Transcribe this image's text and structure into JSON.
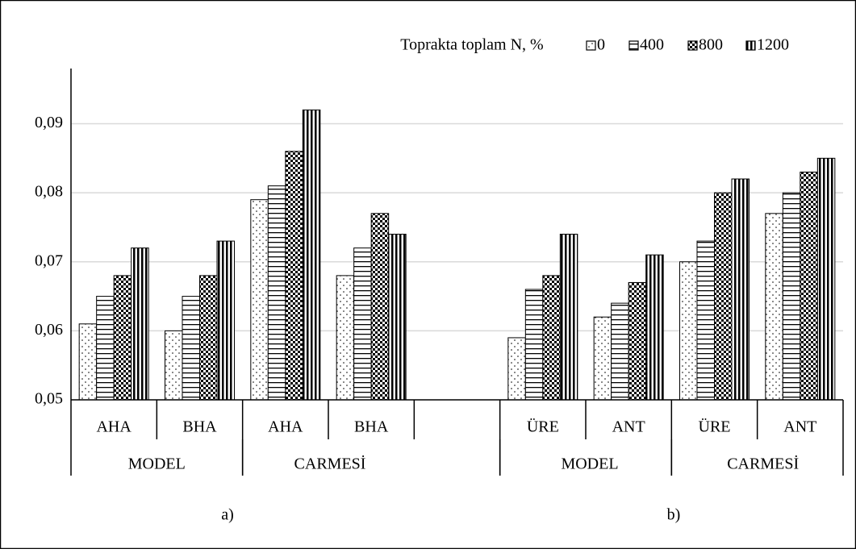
{
  "chart_data": {
    "type": "bar",
    "legend_title": "Toprakta toplam N, %",
    "categories": [
      "AHA",
      "BHA",
      "AHA",
      "BHA",
      null,
      "ÜRE",
      "ANT",
      "ÜRE",
      "ANT"
    ],
    "groups": [
      "MODEL",
      "CARMESİ",
      "MODEL",
      "CARMESİ"
    ],
    "panels": [
      "a)",
      "b)"
    ],
    "series": [
      {
        "name": "0",
        "color": "#000000",
        "pattern": "dots",
        "values": [
          0.061,
          0.06,
          0.079,
          0.068,
          null,
          0.059,
          0.062,
          0.07,
          0.077
        ]
      },
      {
        "name": "400",
        "color": "#000000",
        "pattern": "horizontal",
        "values": [
          0.065,
          0.065,
          0.081,
          0.072,
          null,
          0.066,
          0.064,
          0.073,
          0.08
        ]
      },
      {
        "name": "800",
        "color": "#000000",
        "pattern": "checker",
        "values": [
          0.068,
          0.068,
          0.086,
          0.077,
          null,
          0.068,
          0.067,
          0.08,
          0.083
        ]
      },
      {
        "name": "1200",
        "color": "#000000",
        "pattern": "vertical",
        "values": [
          0.072,
          0.073,
          0.092,
          0.074,
          null,
          0.074,
          0.071,
          0.082,
          0.085
        ]
      }
    ],
    "ylim": [
      0.05,
      0.098
    ],
    "yticks": [
      {
        "value": 0.05,
        "label": "0,05"
      },
      {
        "value": 0.06,
        "label": "0,06"
      },
      {
        "value": 0.07,
        "label": "0,07"
      },
      {
        "value": 0.08,
        "label": "0,08"
      },
      {
        "value": 0.09,
        "label": "0,09"
      }
    ],
    "grid": true,
    "legend": "top-right"
  }
}
